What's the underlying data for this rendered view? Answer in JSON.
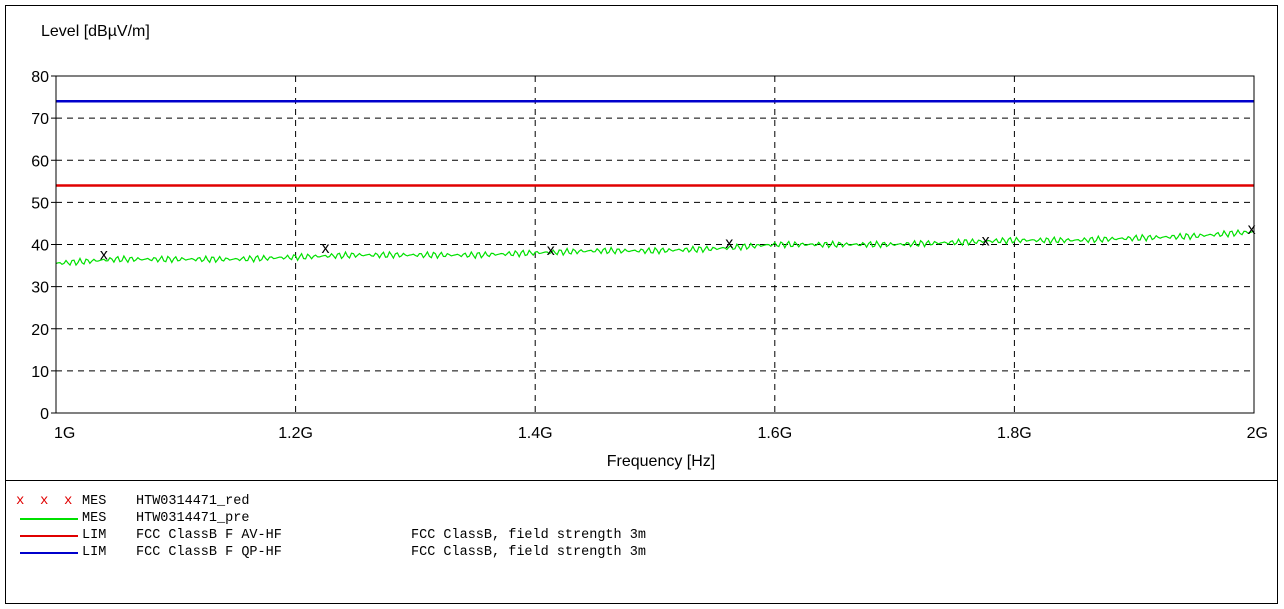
{
  "chart_data": {
    "type": "line",
    "ylabel": "Level [dBµV/m]",
    "xlabel": "Frequency [Hz]",
    "xlim": [
      1000000000,
      2000000000
    ],
    "ylim": [
      0,
      80
    ],
    "x_ticks": [
      {
        "value": 1000000000,
        "label": "1G"
      },
      {
        "value": 1200000000,
        "label": "1.2G"
      },
      {
        "value": 1400000000,
        "label": "1.4G"
      },
      {
        "value": 1600000000,
        "label": "1.6G"
      },
      {
        "value": 1800000000,
        "label": "1.8G"
      },
      {
        "value": 2000000000,
        "label": "2G"
      }
    ],
    "y_ticks": [
      0,
      10,
      20,
      30,
      40,
      50,
      60,
      70,
      80
    ],
    "grid": true,
    "series": [
      {
        "name": "HTW0314471_pre",
        "kind": "line",
        "color": "#00e000",
        "x": [
          1000000000,
          1050000000,
          1100000000,
          1150000000,
          1200000000,
          1250000000,
          1300000000,
          1350000000,
          1400000000,
          1450000000,
          1500000000,
          1550000000,
          1600000000,
          1650000000,
          1700000000,
          1750000000,
          1800000000,
          1850000000,
          1900000000,
          1950000000,
          2000000000
        ],
        "y": [
          35.5,
          36.5,
          36.5,
          36.5,
          37,
          37.5,
          37.5,
          37.5,
          38,
          38.5,
          38.5,
          39,
          40,
          40,
          40,
          40.5,
          41,
          41,
          41.5,
          42,
          43
        ]
      },
      {
        "name": "HTW0314471_red",
        "kind": "scatter",
        "marker": "x",
        "color": "#e00000",
        "x": [
          1040000000,
          1225000000,
          1413000000,
          1562000000,
          1776000000,
          1998000000
        ],
        "y": [
          37.6,
          39.2,
          38.7,
          40.4,
          41.0,
          43.7
        ]
      },
      {
        "name": "FCC ClassB F AV-HF",
        "kind": "hline",
        "color": "#e00000",
        "y": 54
      },
      {
        "name": "FCC ClassB F QP-HF",
        "kind": "hline",
        "color": "#0000cc",
        "y": 74
      }
    ]
  },
  "legend": [
    {
      "symbol": "x",
      "color": "#e00000",
      "type": "MES",
      "name": "HTW0314471_red",
      "desc": ""
    },
    {
      "symbol": "line",
      "color": "#00e000",
      "type": "MES",
      "name": "HTW0314471_pre",
      "desc": ""
    },
    {
      "symbol": "line",
      "color": "#e00000",
      "type": "LIM",
      "name": "FCC ClassB F AV-HF",
      "desc": "FCC ClassB, field strength 3m"
    },
    {
      "symbol": "line",
      "color": "#0000cc",
      "type": "LIM",
      "name": "FCC ClassB F QP-HF",
      "desc": "FCC ClassB, field strength 3m"
    }
  ]
}
